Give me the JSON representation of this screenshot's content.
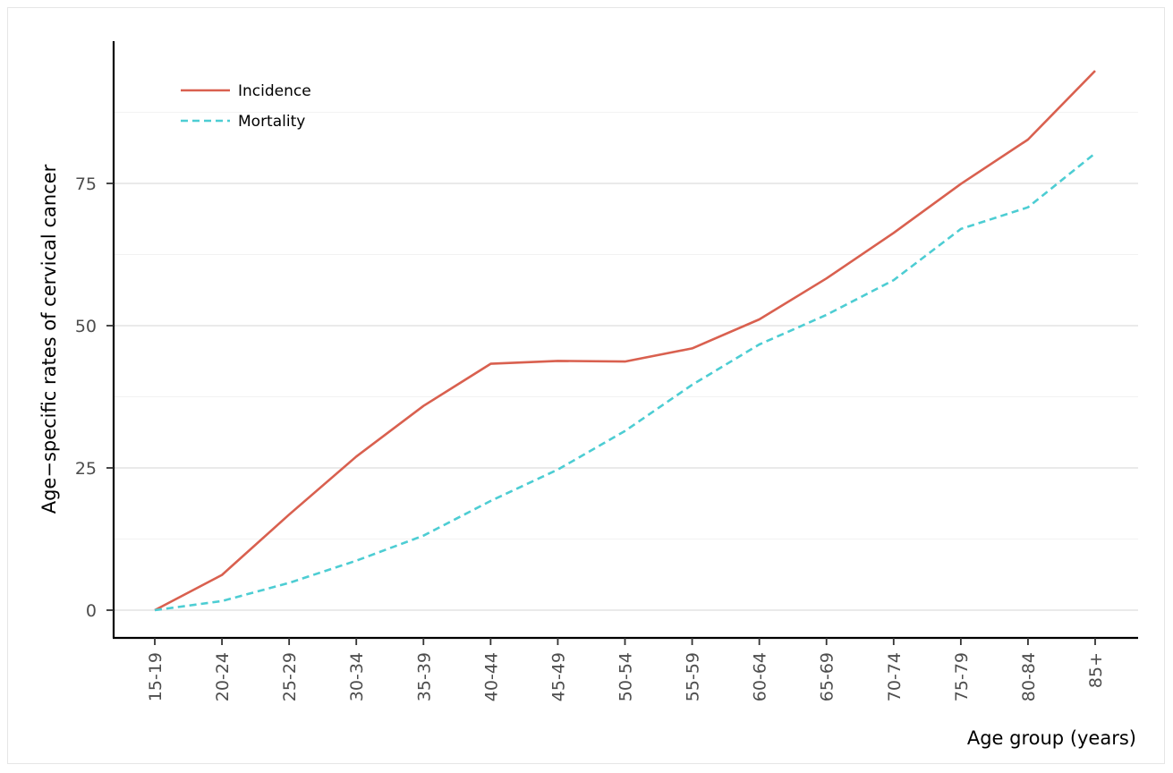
{
  "chart_data": {
    "type": "line",
    "categories": [
      "15-19",
      "20-24",
      "25-29",
      "30-34",
      "35-39",
      "40-44",
      "45-49",
      "50-54",
      "55-59",
      "60-64",
      "65-69",
      "70-74",
      "75-79",
      "80-84",
      "85+"
    ],
    "series": [
      {
        "name": "Incidence",
        "color": "#d9604f",
        "dash": "solid",
        "values": [
          0,
          6.2,
          16.8,
          27.0,
          35.9,
          43.3,
          43.8,
          43.7,
          46.0,
          51.1,
          58.3,
          66.3,
          74.9,
          82.7,
          94.8
        ]
      },
      {
        "name": "Mortality",
        "color": "#4dcdd3",
        "dash": "dashed",
        "values": [
          0,
          1.6,
          4.8,
          8.7,
          13.1,
          19.2,
          24.7,
          31.5,
          39.6,
          46.7,
          51.9,
          58.0,
          67.0,
          70.8,
          80.3
        ]
      }
    ],
    "xlabel": "Age group (years)",
    "ylabel": "Age−specific rates of cervical cancer",
    "yticks": [
      0,
      25,
      50,
      75
    ],
    "ylim": [
      -4.6,
      99.4
    ],
    "grid": true,
    "legend_position": "top-left"
  }
}
